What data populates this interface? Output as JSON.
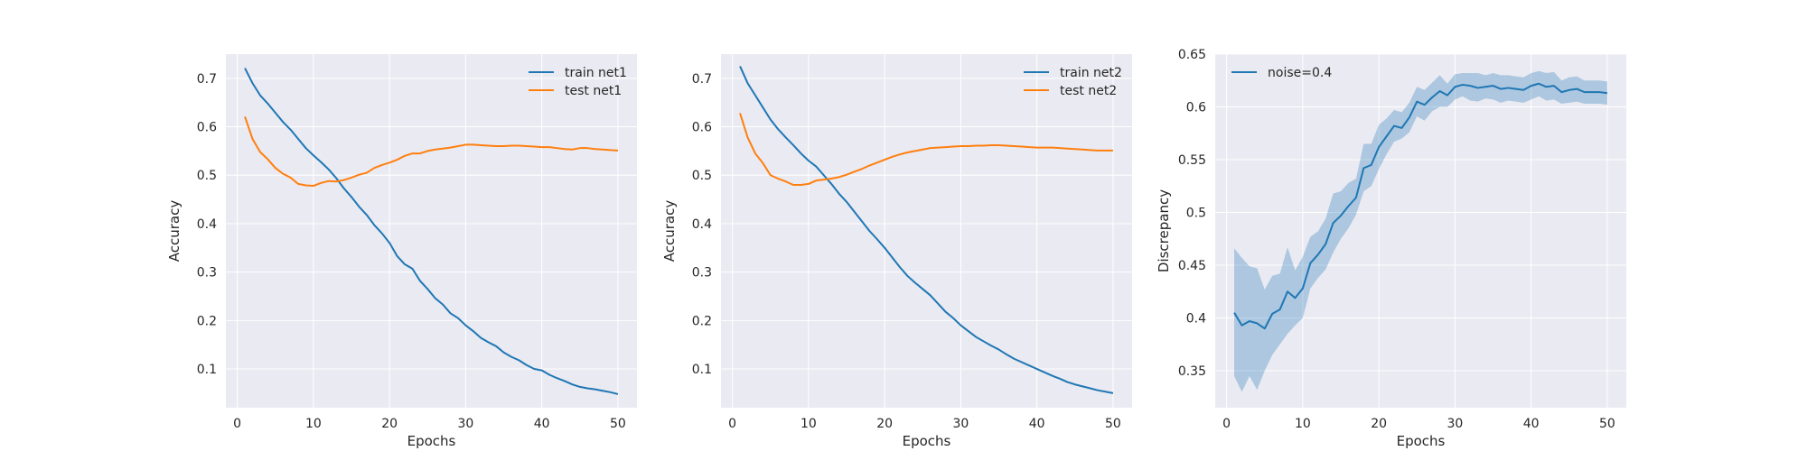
{
  "chart_data": [
    {
      "type": "line",
      "xlabel": "Epochs",
      "ylabel": "Accuracy",
      "xlim": [
        -1.5,
        52.5
      ],
      "ylim": [
        0.02,
        0.75
      ],
      "xticks": [
        0,
        10,
        20,
        30,
        40,
        50
      ],
      "yticks": [
        0.1,
        0.2,
        0.3,
        0.4,
        0.5,
        0.6,
        0.7
      ],
      "grid": true,
      "legend_position": "top-right",
      "x": [
        1,
        2,
        3,
        4,
        5,
        6,
        7,
        8,
        9,
        10,
        11,
        12,
        13,
        14,
        15,
        16,
        17,
        18,
        19,
        20,
        21,
        22,
        23,
        24,
        25,
        26,
        27,
        28,
        29,
        30,
        31,
        32,
        33,
        34,
        35,
        36,
        37,
        38,
        39,
        40,
        41,
        42,
        43,
        44,
        45,
        46,
        47,
        48,
        49,
        50
      ],
      "series": [
        {
          "name": "train net1",
          "color": "#1f77b4",
          "values": [
            0.721,
            0.69,
            0.665,
            0.648,
            0.629,
            0.61,
            0.594,
            0.575,
            0.556,
            0.541,
            0.527,
            0.512,
            0.494,
            0.473,
            0.455,
            0.435,
            0.418,
            0.397,
            0.38,
            0.36,
            0.333,
            0.316,
            0.307,
            0.282,
            0.265,
            0.246,
            0.233,
            0.215,
            0.205,
            0.19,
            0.178,
            0.164,
            0.155,
            0.147,
            0.134,
            0.125,
            0.118,
            0.108,
            0.1,
            0.097,
            0.088,
            0.081,
            0.075,
            0.068,
            0.063,
            0.06,
            0.058,
            0.055,
            0.052,
            0.048
          ]
        },
        {
          "name": "test net1",
          "color": "#ff7f0e",
          "values": [
            0.621,
            0.575,
            0.548,
            0.533,
            0.515,
            0.503,
            0.495,
            0.482,
            0.479,
            0.478,
            0.484,
            0.488,
            0.487,
            0.49,
            0.495,
            0.501,
            0.505,
            0.515,
            0.521,
            0.526,
            0.532,
            0.54,
            0.545,
            0.545,
            0.55,
            0.553,
            0.555,
            0.557,
            0.56,
            0.563,
            0.563,
            0.562,
            0.561,
            0.56,
            0.56,
            0.561,
            0.561,
            0.56,
            0.559,
            0.558,
            0.558,
            0.556,
            0.554,
            0.553,
            0.556,
            0.556,
            0.554,
            0.553,
            0.552,
            0.551
          ]
        }
      ]
    },
    {
      "type": "line",
      "xlabel": "Epochs",
      "ylabel": "Accuracy",
      "xlim": [
        -1.5,
        52.5
      ],
      "ylim": [
        0.02,
        0.75
      ],
      "xticks": [
        0,
        10,
        20,
        30,
        40,
        50
      ],
      "yticks": [
        0.1,
        0.2,
        0.3,
        0.4,
        0.5,
        0.6,
        0.7
      ],
      "grid": true,
      "legend_position": "top-right",
      "x": [
        1,
        2,
        3,
        4,
        5,
        6,
        7,
        8,
        9,
        10,
        11,
        12,
        13,
        14,
        15,
        16,
        17,
        18,
        19,
        20,
        21,
        22,
        23,
        24,
        25,
        26,
        27,
        28,
        29,
        30,
        31,
        32,
        33,
        34,
        35,
        36,
        37,
        38,
        39,
        40,
        41,
        42,
        43,
        44,
        45,
        46,
        47,
        48,
        49,
        50
      ],
      "series": [
        {
          "name": "train net2",
          "color": "#1f77b4",
          "values": [
            0.725,
            0.69,
            0.665,
            0.64,
            0.615,
            0.595,
            0.578,
            0.562,
            0.545,
            0.53,
            0.518,
            0.5,
            0.482,
            0.462,
            0.445,
            0.425,
            0.405,
            0.385,
            0.368,
            0.35,
            0.33,
            0.31,
            0.292,
            0.278,
            0.265,
            0.252,
            0.235,
            0.218,
            0.205,
            0.19,
            0.178,
            0.166,
            0.157,
            0.148,
            0.14,
            0.13,
            0.121,
            0.114,
            0.107,
            0.1,
            0.093,
            0.086,
            0.08,
            0.073,
            0.068,
            0.064,
            0.06,
            0.056,
            0.053,
            0.05
          ]
        },
        {
          "name": "test net2",
          "color": "#ff7f0e",
          "values": [
            0.628,
            0.578,
            0.545,
            0.525,
            0.5,
            0.493,
            0.487,
            0.48,
            0.48,
            0.482,
            0.489,
            0.491,
            0.493,
            0.496,
            0.501,
            0.507,
            0.513,
            0.52,
            0.526,
            0.532,
            0.538,
            0.543,
            0.547,
            0.55,
            0.553,
            0.556,
            0.557,
            0.558,
            0.559,
            0.56,
            0.56,
            0.561,
            0.561,
            0.562,
            0.562,
            0.561,
            0.56,
            0.559,
            0.558,
            0.557,
            0.557,
            0.557,
            0.556,
            0.555,
            0.554,
            0.553,
            0.552,
            0.551,
            0.551,
            0.551
          ]
        }
      ]
    },
    {
      "type": "line",
      "xlabel": "Epochs",
      "ylabel": "Discrepancy",
      "xlim": [
        -1.5,
        52.5
      ],
      "ylim": [
        0.315,
        0.65
      ],
      "xticks": [
        0,
        10,
        20,
        30,
        40,
        50
      ],
      "yticks": [
        0.35,
        0.4,
        0.45,
        0.5,
        0.55,
        0.6,
        0.65
      ],
      "grid": true,
      "legend_position": "top-left",
      "x": [
        1,
        2,
        3,
        4,
        5,
        6,
        7,
        8,
        9,
        10,
        11,
        12,
        13,
        14,
        15,
        16,
        17,
        18,
        19,
        20,
        21,
        22,
        23,
        24,
        25,
        26,
        27,
        28,
        29,
        30,
        31,
        32,
        33,
        34,
        35,
        36,
        37,
        38,
        39,
        40,
        41,
        42,
        43,
        44,
        45,
        46,
        47,
        48,
        49,
        50
      ],
      "series": [
        {
          "name": "noise=0.4",
          "color": "#1f77b4",
          "band_color": "#1f77b4",
          "values": [
            0.405,
            0.393,
            0.397,
            0.395,
            0.39,
            0.404,
            0.408,
            0.425,
            0.419,
            0.428,
            0.452,
            0.46,
            0.47,
            0.49,
            0.497,
            0.506,
            0.514,
            0.542,
            0.545,
            0.562,
            0.572,
            0.582,
            0.58,
            0.59,
            0.605,
            0.602,
            0.609,
            0.615,
            0.611,
            0.619,
            0.621,
            0.62,
            0.618,
            0.619,
            0.62,
            0.617,
            0.618,
            0.617,
            0.616,
            0.62,
            0.622,
            0.619,
            0.62,
            0.614,
            0.616,
            0.617,
            0.614,
            0.614,
            0.614,
            0.613
          ],
          "lower": [
            0.345,
            0.33,
            0.345,
            0.332,
            0.35,
            0.365,
            0.375,
            0.385,
            0.393,
            0.4,
            0.428,
            0.438,
            0.446,
            0.462,
            0.475,
            0.485,
            0.498,
            0.52,
            0.525,
            0.541,
            0.555,
            0.567,
            0.57,
            0.576,
            0.591,
            0.587,
            0.596,
            0.6,
            0.6,
            0.607,
            0.61,
            0.606,
            0.605,
            0.608,
            0.607,
            0.604,
            0.606,
            0.605,
            0.604,
            0.607,
            0.61,
            0.606,
            0.607,
            0.603,
            0.604,
            0.605,
            0.603,
            0.603,
            0.603,
            0.602
          ],
          "upper": [
            0.466,
            0.457,
            0.449,
            0.447,
            0.427,
            0.44,
            0.442,
            0.467,
            0.445,
            0.458,
            0.477,
            0.482,
            0.494,
            0.518,
            0.52,
            0.528,
            0.532,
            0.565,
            0.565,
            0.583,
            0.589,
            0.597,
            0.595,
            0.604,
            0.619,
            0.616,
            0.623,
            0.63,
            0.622,
            0.631,
            0.632,
            0.632,
            0.632,
            0.63,
            0.632,
            0.63,
            0.63,
            0.629,
            0.628,
            0.632,
            0.634,
            0.632,
            0.633,
            0.625,
            0.628,
            0.629,
            0.625,
            0.625,
            0.625,
            0.624
          ]
        }
      ]
    }
  ]
}
